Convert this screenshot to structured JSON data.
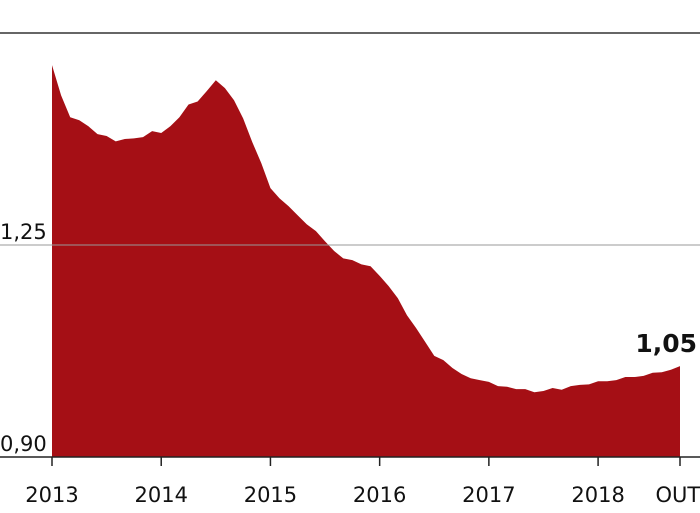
{
  "chart_data": {
    "type": "area",
    "categories": [
      "2013",
      null,
      null,
      null,
      null,
      null,
      null,
      null,
      null,
      null,
      null,
      null,
      "2014",
      null,
      null,
      null,
      null,
      null,
      null,
      null,
      null,
      null,
      null,
      null,
      "2015",
      null,
      null,
      null,
      null,
      null,
      null,
      null,
      null,
      null,
      null,
      null,
      "2016",
      null,
      null,
      null,
      null,
      null,
      null,
      null,
      null,
      null,
      null,
      null,
      "2017",
      null,
      null,
      null,
      null,
      null,
      null,
      null,
      null,
      null,
      null,
      null,
      "2018",
      null,
      null,
      null,
      null,
      null,
      null,
      null,
      null,
      "OUT."
    ],
    "values": [
      1.547,
      1.497,
      1.461,
      1.456,
      1.446,
      1.433,
      1.43,
      1.421,
      1.425,
      1.426,
      1.428,
      1.438,
      1.435,
      1.446,
      1.461,
      1.482,
      1.487,
      1.504,
      1.522,
      1.509,
      1.489,
      1.459,
      1.42,
      1.385,
      1.344,
      1.327,
      1.314,
      1.299,
      1.284,
      1.273,
      1.256,
      1.24,
      1.228,
      1.225,
      1.218,
      1.215,
      1.199,
      1.182,
      1.162,
      1.134,
      1.113,
      1.09,
      1.067,
      1.06,
      1.047,
      1.037,
      1.03,
      1.027,
      1.024,
      1.017,
      1.016,
      1.012,
      1.012,
      1.007,
      1.009,
      1.014,
      1.011,
      1.017,
      1.019,
      1.02,
      1.025,
      1.025,
      1.027,
      1.032,
      1.032,
      1.034,
      1.039,
      1.04,
      1.044,
      1.05
    ],
    "value_labels": [
      null,
      null,
      null,
      null,
      null,
      null,
      null,
      null,
      null,
      null,
      null,
      null,
      null,
      null,
      null,
      null,
      null,
      null,
      null,
      null,
      null,
      null,
      null,
      null,
      null,
      null,
      null,
      null,
      null,
      null,
      null,
      null,
      null,
      null,
      null,
      null,
      null,
      null,
      null,
      null,
      null,
      null,
      null,
      null,
      null,
      null,
      null,
      null,
      null,
      null,
      null,
      null,
      null,
      null,
      null,
      null,
      null,
      null,
      null,
      null,
      null,
      null,
      null,
      null,
      null,
      null,
      null,
      null,
      null,
      "1,05"
    ],
    "color": "#a50f15",
    "ylim": [
      0.9,
      1.6
    ],
    "yticks": [
      {
        "value": 0.9,
        "label": "0,90"
      },
      {
        "value": 1.25,
        "label": "1,25"
      }
    ],
    "grid": true
  }
}
